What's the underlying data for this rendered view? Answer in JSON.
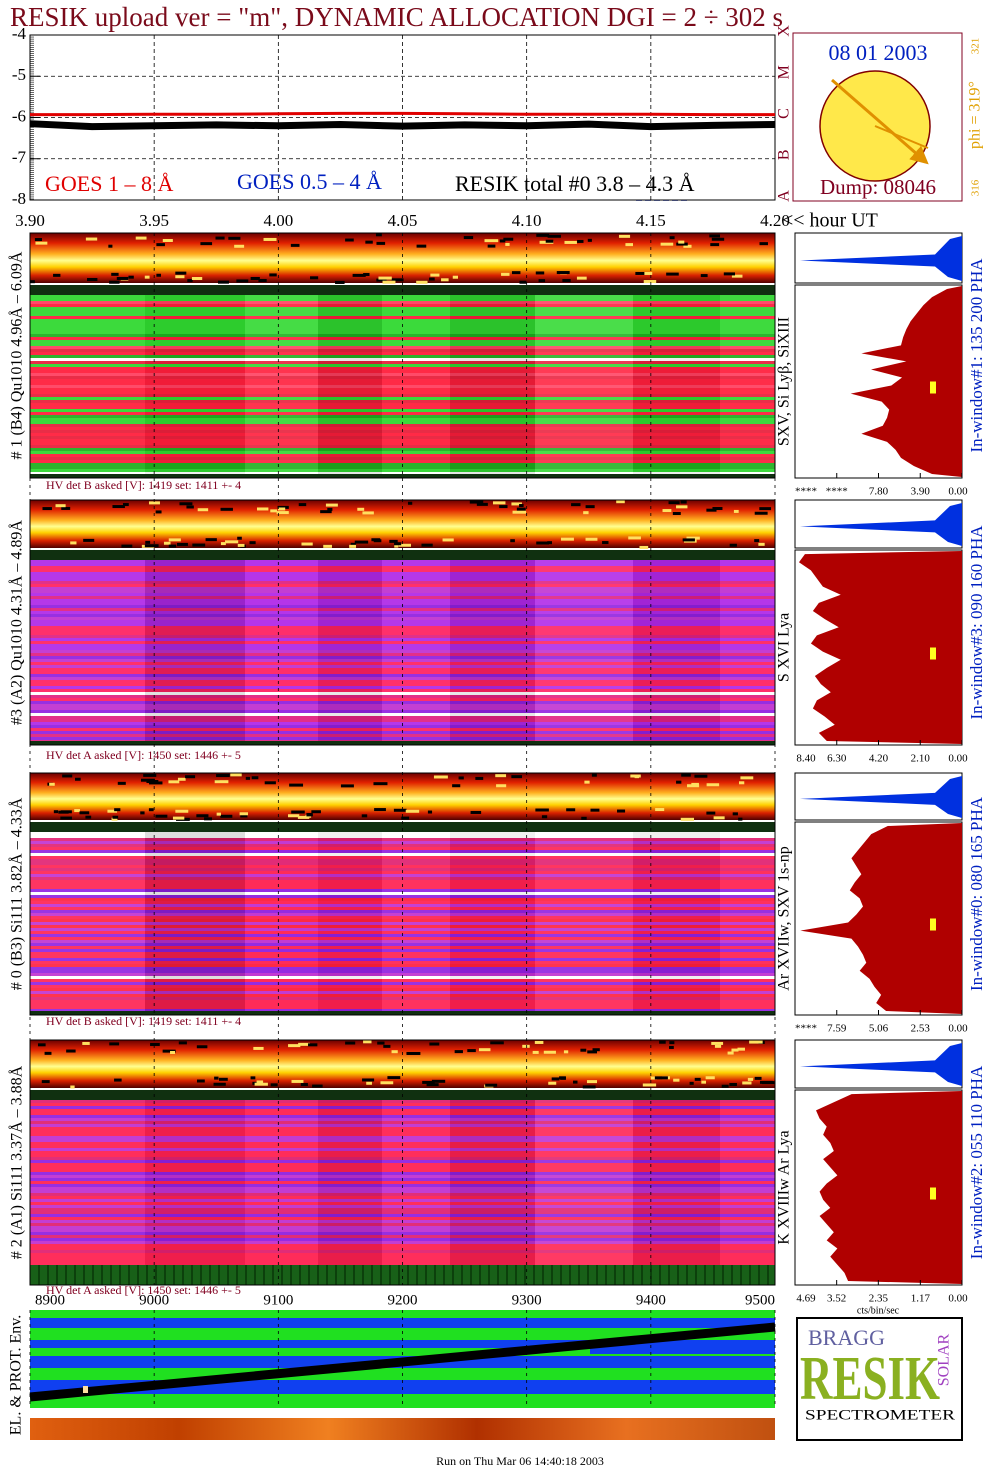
{
  "title": "RESIK upload ver = \"m\", DYNAMIC ALLOCATION  DGI =   2 ÷ 302 s",
  "chart_data": [
    {
      "type": "line",
      "x": [
        3.9,
        3.925,
        3.95,
        3.975,
        4.0,
        4.025,
        4.05,
        4.075,
        4.1,
        4.125,
        4.15,
        4.175,
        4.2
      ],
      "series": [
        {
          "name": "GOES 1 – 8 Å",
          "color": "#e00000",
          "values": [
            -5.93,
            -5.93,
            -5.92,
            -5.92,
            -5.91,
            -5.9,
            -5.9,
            -5.91,
            -5.92,
            -5.92,
            -5.92,
            -5.93,
            -5.93
          ]
        },
        {
          "name": "RESIK total #0  3.8 – 4.3 Å",
          "color": "#000000",
          "values": [
            -6.15,
            -6.22,
            -6.2,
            -6.18,
            -6.2,
            -6.17,
            -6.21,
            -6.18,
            -6.2,
            -6.16,
            -6.22,
            -6.19,
            -6.17
          ]
        }
      ],
      "annotations": [
        {
          "text": "GOES 0.5 – 4 Å",
          "color": "#0020c0"
        }
      ],
      "xlim": [
        3.9,
        4.2
      ],
      "xticks": [
        {
          "value": 3.9,
          "label": "3.90"
        },
        3.95,
        {
          "value": 4.0,
          "label": "4.00"
        },
        4.05,
        {
          "value": 4.1,
          "label": "4.10"
        },
        4.15,
        {
          "value": 4.2,
          "label": "4.20"
        }
      ],
      "xlabel": "<< hour UT",
      "ylim": [
        -8,
        -4
      ],
      "yticks": [
        -8,
        -7,
        -6,
        -5,
        -4
      ],
      "class_labels": [
        {
          "value": -8,
          "label": "A"
        },
        {
          "value": -7,
          "label": "B"
        },
        {
          "value": -6,
          "label": "C"
        },
        {
          "value": -5,
          "label": "M"
        },
        {
          "value": -4,
          "label": "X"
        }
      ],
      "grid": true
    },
    {
      "type": "area",
      "color": "#b00000",
      "label": "SXV, Si Lyβ, SiXIII",
      "window": "In-window#1:  135 200 PHA",
      "values": [
        1.4,
        2.8,
        3.6,
        4.2,
        4.8,
        5.2,
        5.5,
        5.7,
        9.4,
        5.2,
        8.5,
        5.6,
        6.6,
        10.4,
        7.5,
        6.8,
        7.0,
        7.4,
        9.4,
        7.0,
        6.2,
        5.7,
        4.5,
        2.8
      ],
      "xlim": [
        15.6,
        0
      ],
      "xticks": [
        {
          "value": 15.6,
          "label": "****"
        },
        {
          "value": 11.7,
          "label": "****"
        },
        {
          "value": 7.8,
          "label": "7.80"
        },
        {
          "value": 3.9,
          "label": "3.90"
        },
        {
          "value": 0,
          "label": "0.00"
        }
      ]
    },
    {
      "type": "area",
      "color": "#b00000",
      "label": "S XVI Lya",
      "window": "In-window#3:  090 160 PHA",
      "values": [
        7.9,
        8.2,
        7.6,
        7.3,
        7.0,
        6.1,
        7.2,
        7.5,
        6.9,
        6.2,
        7.3,
        7.6,
        7.0,
        6.1,
        6.8,
        7.4,
        7.1,
        6.6,
        7.3,
        7.5,
        6.9,
        6.4,
        7.2,
        6.8
      ],
      "xlim": [
        8.4,
        0
      ],
      "xticks": [
        {
          "value": 8.4,
          "label": "8.40"
        },
        {
          "value": 6.3,
          "label": "6.30"
        },
        {
          "value": 4.2,
          "label": "4.20"
        },
        {
          "value": 2.1,
          "label": "2.10"
        },
        {
          "value": 0,
          "label": "0.00"
        }
      ]
    },
    {
      "type": "area",
      "color": "#b00000",
      "label": "Ar XVIIw,  SXV 1s-np",
      "window": "In-window#0:  080 165 PHA",
      "values": [
        4.5,
        5.5,
        5.9,
        6.3,
        6.7,
        6.4,
        6.1,
        6.5,
        6.8,
        6.2,
        6.0,
        6.4,
        6.9,
        9.8,
        6.7,
        6.3,
        6.0,
        5.8,
        6.2,
        5.6,
        5.3,
        4.9,
        5.2,
        4.6
      ],
      "xlim": [
        10.12,
        0
      ],
      "xticks": [
        {
          "value": 10.12,
          "label": "****"
        },
        7.59,
        5.06,
        2.53,
        {
          "value": 0,
          "label": "0.00"
        }
      ]
    },
    {
      "type": "area",
      "color": "#b00000",
      "label": "K XVIIIw  Ar Lya",
      "window": "In-window#2:  055 110 PHA",
      "values": [
        3.1,
        3.6,
        4.1,
        4.0,
        3.8,
        3.9,
        3.7,
        3.6,
        3.9,
        3.7,
        3.5,
        3.8,
        4.0,
        3.9,
        3.7,
        4.0,
        3.8,
        3.6,
        3.8,
        3.5,
        3.7,
        3.5,
        3.3,
        3.2
      ],
      "xlim": [
        4.69,
        0
      ],
      "xticks": [
        4.69,
        3.52,
        2.35,
        1.17,
        {
          "value": 0,
          "label": "0.00"
        }
      ],
      "xlabel": "cts/bin/sec"
    }
  ],
  "sun": {
    "date": "08 01 2003",
    "dump": "Dump: 08046",
    "phi": "phi = 319°",
    "phi_max": "321",
    "phi_min": "316"
  },
  "detectors": [
    {
      "label": "# 1 (B4) Qu1010 4.96Å – 6.09Å",
      "hv": "HV det B asked [V]:  1419 set:  1411  +-   4"
    },
    {
      "label": "#3 (A2) Qu1010  4.31Å – 4.89Å",
      "hv": "HV det A asked [V]:  1450 set:  1446  +-   5"
    },
    {
      "label": "# 0 (B3) Si111  3.82Å – 4.33Å",
      "hv": "HV det B asked [V]:  1419 set:  1411  +-   4"
    },
    {
      "label": "# 2 (A1) Si111  3.37Å – 3.88Å",
      "hv": "HV det A asked [V]:  1450 set:  1446  +-   5"
    }
  ],
  "time_axis": {
    "xlim": [
      8900,
      9500
    ],
    "xticks": [
      8900,
      9000,
      9100,
      9200,
      9300,
      9400,
      9500
    ]
  },
  "environment": {
    "label": "EL. & PROT. Env."
  },
  "logo": {
    "top": "BRAGG",
    "main": "RESIK",
    "side": "SOLAR",
    "bottom": "SPECTROMETER"
  },
  "footer": "Run on Thu Mar 06 14:40:18 2003"
}
